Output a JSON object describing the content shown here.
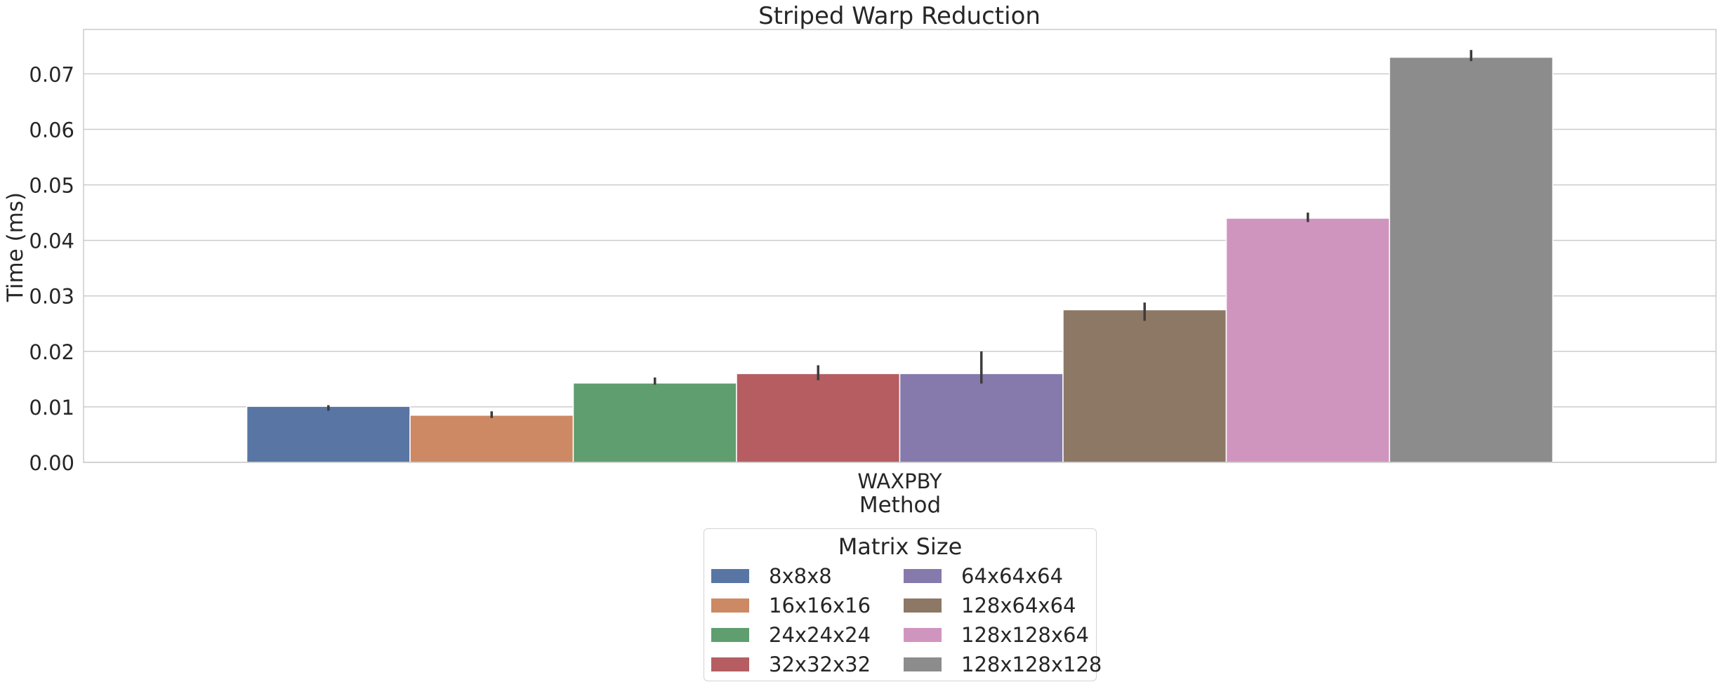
{
  "chart_data": {
    "type": "bar",
    "title": "Striped Warp Reduction",
    "xlabel": "Method",
    "ylabel": "Time (ms)",
    "categories": [
      "WAXPBY"
    ],
    "ylim": [
      0,
      0.078
    ],
    "yticks": [
      "0.00",
      "0.01",
      "0.02",
      "0.03",
      "0.04",
      "0.05",
      "0.06",
      "0.07"
    ],
    "grid": true,
    "legend": {
      "title": "Matrix Size",
      "placement": "bottom-center",
      "columns": 2
    },
    "series": [
      {
        "name": "8x8x8",
        "color": "#5875a4",
        "values": [
          0.0101
        ],
        "err_low": [
          0.0093
        ],
        "err_high": [
          0.0103
        ]
      },
      {
        "name": "16x16x16",
        "color": "#cc8963",
        "values": [
          0.0085
        ],
        "err_low": [
          0.008
        ],
        "err_high": [
          0.0092
        ]
      },
      {
        "name": "24x24x24",
        "color": "#5f9e6e",
        "values": [
          0.0143
        ],
        "err_low": [
          0.014
        ],
        "err_high": [
          0.0153
        ]
      },
      {
        "name": "32x32x32",
        "color": "#b55d60",
        "values": [
          0.016
        ],
        "err_low": [
          0.0148
        ],
        "err_high": [
          0.0175
        ]
      },
      {
        "name": "64x64x64",
        "color": "#857aab",
        "values": [
          0.016
        ],
        "err_low": [
          0.0142
        ],
        "err_high": [
          0.02
        ]
      },
      {
        "name": "128x64x64",
        "color": "#8d7866",
        "values": [
          0.0275
        ],
        "err_low": [
          0.0255
        ],
        "err_high": [
          0.0288
        ]
      },
      {
        "name": "128x128x64",
        "color": "#d095bf",
        "values": [
          0.044
        ],
        "err_low": [
          0.0433
        ],
        "err_high": [
          0.045
        ]
      },
      {
        "name": "128x128x128",
        "color": "#8c8c8c",
        "values": [
          0.073
        ],
        "err_low": [
          0.0723
        ],
        "err_high": [
          0.0743
        ]
      }
    ]
  }
}
